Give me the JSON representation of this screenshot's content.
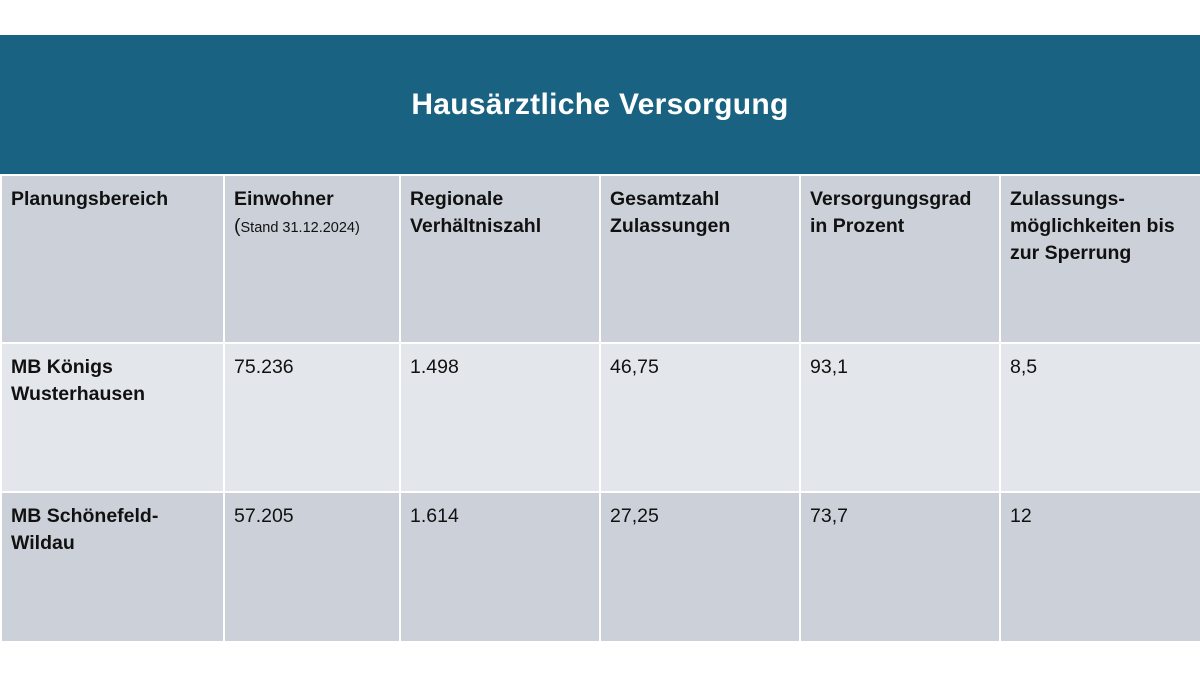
{
  "title": "Hausärztliche Versorgung",
  "table": {
    "headers": {
      "planungsbereich": "Planungsbereich",
      "einwohner": "Einwohner",
      "einwohner_paren_open": "(",
      "einwohner_note": "Stand 31.12.2024)",
      "verhaeltniszahl_line1": "Regionale",
      "verhaeltniszahl_line2": "Verhältniszahl",
      "gesamtzahl_line1": "Gesamtzahl",
      "gesamtzahl_line2": "Zulassungen",
      "versorgungsgrad_line1": "Versorgungsgrad",
      "versorgungsgrad_line2": "in Prozent",
      "zulassung_line1": "Zulassungs-",
      "zulassung_line2": "möglichkeiten bis",
      "zulassung_line3": "zur Sperrung"
    },
    "rows": [
      {
        "name_line1": "MB Königs",
        "name_line2": "Wusterhausen",
        "einwohner": "75.236",
        "verhaeltniszahl": "1.498",
        "zulassungen": "46,75",
        "versorgungsgrad": "93,1",
        "moeglichkeiten": "8,5"
      },
      {
        "name_line1": "MB Schönefeld-",
        "name_line2": "Wildau",
        "einwohner": "57.205",
        "verhaeltniszahl": "1.614",
        "zulassungen": "27,25",
        "versorgungsgrad": "73,7",
        "moeglichkeiten": "12"
      }
    ]
  }
}
